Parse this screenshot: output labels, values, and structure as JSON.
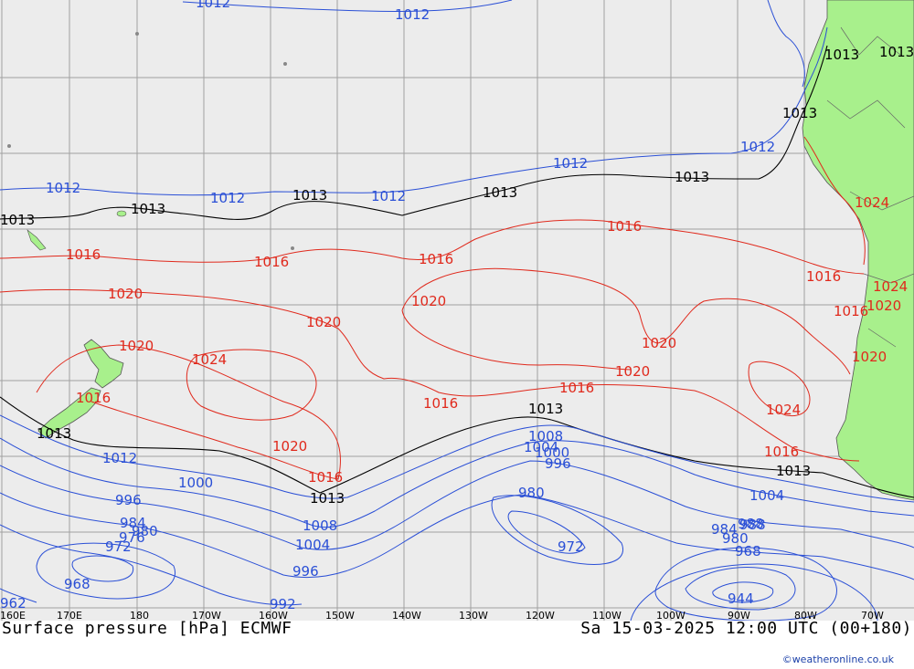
{
  "map": {
    "title_left": "Surface pressure [hPa] ECMWF",
    "title_right": "Sa 15-03-2025 12:00 UTC (00+180)",
    "credit": "©weatheronline.co.uk",
    "longitude_labels": [
      "160E",
      "170E",
      "180",
      "170W",
      "160W",
      "150W",
      "140W",
      "130W",
      "120W",
      "110W",
      "100W",
      "90W",
      "80W",
      "70W"
    ],
    "colors": {
      "ocean": "#ececec",
      "land": "#a8f08c",
      "isobar_low": "#2a4fd6",
      "isobar_high": "#e0291c",
      "isobar_1013": "#000000",
      "grid": "#a0a0a0"
    },
    "isobar_labels": {
      "blue": [
        "1012",
        "1012",
        "1012",
        "1012",
        "1012",
        "1012",
        "1012",
        "1012",
        "1008",
        "1004",
        "1000",
        "1000",
        "996",
        "996",
        "992",
        "988",
        "984",
        "980",
        "976",
        "972",
        "968",
        "962",
        "944",
        "1004",
        "980",
        "1004",
        "972",
        "984",
        "980",
        "988",
        "968",
        "996",
        "1008"
      ],
      "red": [
        "1016",
        "1016",
        "1016",
        "1016",
        "1016",
        "1016",
        "1016",
        "1016",
        "1016",
        "1020",
        "1020",
        "1020",
        "1020",
        "1020",
        "1020",
        "1020",
        "1024",
        "1024",
        "1024",
        "1020",
        "1016",
        "1020",
        "1024",
        "1016"
      ],
      "black": [
        "1013",
        "1013",
        "1013",
        "1013",
        "1013",
        "1013",
        "1013",
        "1013",
        "1013",
        "1013",
        "1013",
        "1013"
      ]
    }
  }
}
